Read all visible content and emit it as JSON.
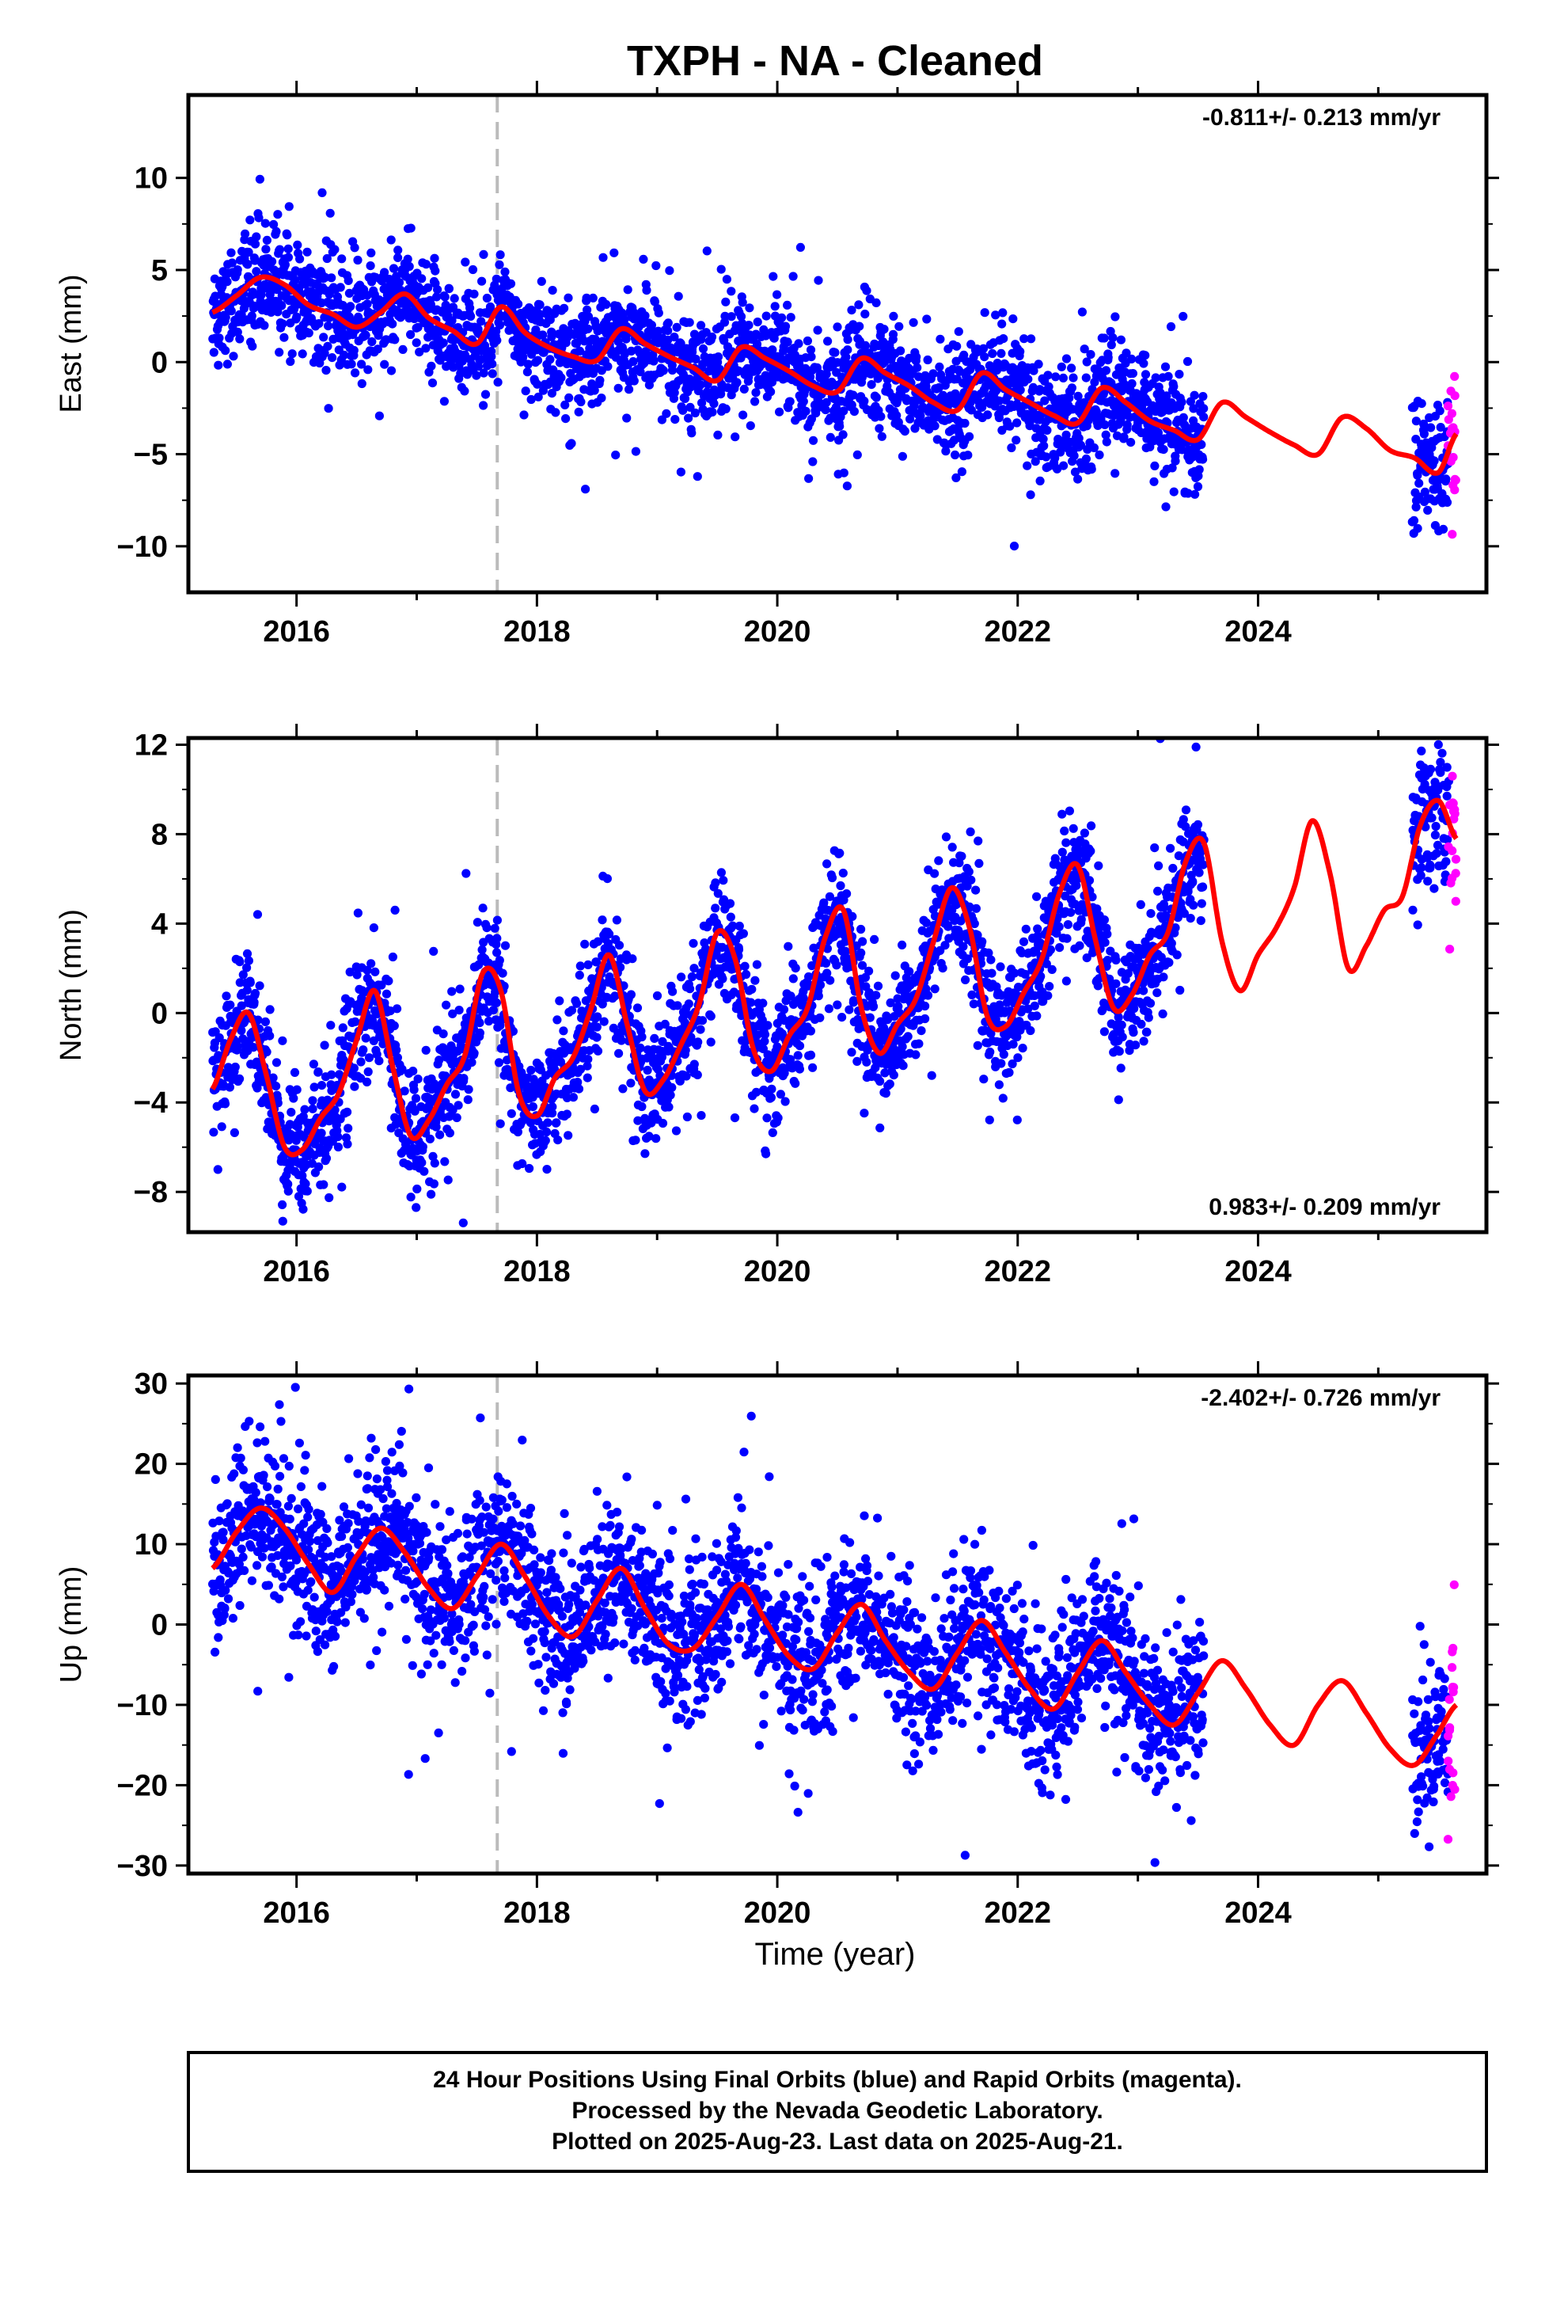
{
  "title": "TXPH  - NA - Cleaned",
  "x_axis_label": "Time (year)",
  "colors": {
    "final_orbits": "#0000ff",
    "rapid_orbits": "#ff00ff",
    "model": "#ff0000",
    "event_line": "#bbbbbb"
  },
  "footer": {
    "line1": "24 Hour Positions Using Final Orbits (blue) and Rapid Orbits (magenta).",
    "line2": "Processed by the Nevada Geodetic Laboratory.",
    "line3": "Plotted on 2025-Aug-23. Last data on 2025-Aug-21."
  },
  "chart_data": [
    {
      "type": "scatter",
      "panel": "east",
      "ylabel": "East (mm)",
      "rate_label": "-0.811+/- 0.213 mm/yr",
      "xlim": [
        2015.1,
        2025.9
      ],
      "ylim": [
        -12.5,
        14.5
      ],
      "xticks": [
        2016,
        2018,
        2020,
        2022,
        2024
      ],
      "yticks": [
        -10,
        -5,
        0,
        5,
        10
      ],
      "event_line_x": 2017.67,
      "final_orbit_span": [
        2015.3,
        2023.55
      ],
      "final_orbit_span_2": [
        2025.28,
        2025.58
      ],
      "rapid_orbit_span": [
        2025.58,
        2025.65
      ],
      "model_curve": {
        "x": [
          2015.3,
          2015.5,
          2015.7,
          2015.9,
          2016.1,
          2016.3,
          2016.5,
          2016.7,
          2016.9,
          2017.1,
          2017.3,
          2017.5,
          2017.7,
          2017.9,
          2018.1,
          2018.3,
          2018.5,
          2018.7,
          2018.9,
          2019.1,
          2019.3,
          2019.5,
          2019.7,
          2019.9,
          2020.1,
          2020.3,
          2020.5,
          2020.7,
          2020.9,
          2021.1,
          2021.3,
          2021.5,
          2021.7,
          2021.9,
          2022.1,
          2022.3,
          2022.5,
          2022.7,
          2022.9,
          2023.1,
          2023.3,
          2023.5,
          2023.7,
          2023.9,
          2024.1,
          2024.3,
          2024.5,
          2024.7,
          2024.9,
          2025.1,
          2025.3,
          2025.5,
          2025.65
        ],
        "y": [
          2.7,
          3.6,
          4.6,
          4.2,
          3.1,
          2.6,
          1.9,
          2.7,
          3.7,
          2.4,
          1.7,
          1.0,
          3.0,
          1.6,
          0.8,
          0.3,
          0.1,
          1.8,
          1.0,
          0.3,
          -0.3,
          -1.0,
          0.8,
          0.2,
          -0.5,
          -1.3,
          -1.6,
          0.2,
          -0.6,
          -1.3,
          -2.2,
          -2.6,
          -0.6,
          -1.5,
          -2.2,
          -2.9,
          -3.3,
          -1.4,
          -2.2,
          -3.2,
          -3.7,
          -4.2,
          -2.2,
          -3.0,
          -3.8,
          -4.5,
          -5.0,
          -3.0,
          -3.6,
          -4.8,
          -5.2,
          -6.0,
          -3.9
        ]
      },
      "model": {
        "intercept": 2.7,
        "rate_mm_yr": -0.811,
        "annual_amp": 1.3,
        "annual_phase_year": 0.62
      },
      "scatter_points": {
        "final_orbits": 2600,
        "rapid_orbits": 18,
        "noise_sd": 1.4
      }
    },
    {
      "type": "scatter",
      "panel": "north",
      "ylabel": "North (mm)",
      "rate_label": "0.983+/- 0.209 mm/yr",
      "xlim": [
        2015.1,
        2025.9
      ],
      "ylim": [
        -9.8,
        12.3
      ],
      "xticks": [
        2016,
        2018,
        2020,
        2022,
        2024
      ],
      "yticks": [
        -8,
        -4,
        0,
        4,
        8,
        12
      ],
      "event_line_x": 2017.67,
      "final_orbit_span": [
        2015.3,
        2023.55
      ],
      "final_orbit_span_2": [
        2025.28,
        2025.58
      ],
      "rapid_orbit_span": [
        2025.58,
        2025.65
      ],
      "model_curve": {
        "x": [
          2015.3,
          2015.45,
          2015.6,
          2015.75,
          2015.9,
          2016.05,
          2016.2,
          2016.35,
          2016.5,
          2016.65,
          2016.8,
          2016.95,
          2017.1,
          2017.25,
          2017.4,
          2017.55,
          2017.7,
          2017.85,
          2018.0,
          2018.15,
          2018.3,
          2018.45,
          2018.6,
          2018.75,
          2018.9,
          2019.05,
          2019.2,
          2019.35,
          2019.5,
          2019.65,
          2019.8,
          2019.95,
          2020.1,
          2020.25,
          2020.4,
          2020.55,
          2020.7,
          2020.85,
          2021.0,
          2021.15,
          2021.3,
          2021.45,
          2021.6,
          2021.75,
          2021.9,
          2022.05,
          2022.2,
          2022.35,
          2022.5,
          2022.65,
          2022.8,
          2022.95,
          2023.1,
          2023.25,
          2023.4,
          2023.55,
          2023.7,
          2023.85,
          2024.0,
          2024.15,
          2024.3,
          2024.45,
          2024.6,
          2024.75,
          2024.9,
          2025.05,
          2025.2,
          2025.35,
          2025.5,
          2025.65
        ],
        "y": [
          -3.4,
          -1.2,
          0.0,
          -2.8,
          -6.0,
          -6.1,
          -4.7,
          -3.6,
          -1.2,
          1.0,
          -2.4,
          -5.5,
          -4.8,
          -3.2,
          -1.9,
          1.8,
          1.0,
          -3.6,
          -4.6,
          -2.9,
          -2.0,
          0.2,
          2.6,
          -0.5,
          -3.5,
          -3.0,
          -1.4,
          0.4,
          3.6,
          2.4,
          -1.6,
          -2.6,
          -1.0,
          0.2,
          3.4,
          4.6,
          0.2,
          -1.8,
          -0.5,
          0.6,
          3.2,
          5.6,
          3.8,
          -0.2,
          -0.6,
          0.9,
          2.4,
          5.4,
          6.6,
          3.2,
          0.2,
          0.8,
          2.6,
          3.6,
          6.8,
          7.6,
          3.2,
          1.0,
          2.6,
          3.8,
          5.6,
          8.6,
          6.2,
          2.0,
          3.0,
          4.6,
          5.2,
          8.4,
          9.5,
          7.8
        ]
      },
      "model": {
        "intercept": -3.4,
        "rate_mm_yr": 0.983,
        "annual_amp": 3.2,
        "annual_phase_year": 0.5
      },
      "scatter_points": {
        "final_orbits": 2600,
        "rapid_orbits": 18,
        "noise_sd": 1.3
      }
    },
    {
      "type": "scatter",
      "panel": "up",
      "ylabel": "Up (mm)",
      "rate_label": "-2.402+/- 0.726 mm/yr",
      "xlim": [
        2015.1,
        2025.9
      ],
      "ylim": [
        -31,
        31
      ],
      "xticks": [
        2016,
        2018,
        2020,
        2022,
        2024
      ],
      "yticks": [
        -30,
        -20,
        -10,
        0,
        10,
        20,
        30
      ],
      "event_line_x": 2017.67,
      "final_orbit_span": [
        2015.3,
        2023.55
      ],
      "final_orbit_span_2": [
        2025.28,
        2025.58
      ],
      "rapid_orbit_span": [
        2025.58,
        2025.65
      ],
      "model_curve": {
        "x": [
          2015.3,
          2015.5,
          2015.7,
          2015.9,
          2016.1,
          2016.3,
          2016.5,
          2016.7,
          2016.9,
          2017.1,
          2017.3,
          2017.5,
          2017.7,
          2017.9,
          2018.1,
          2018.3,
          2018.5,
          2018.7,
          2018.9,
          2019.1,
          2019.3,
          2019.5,
          2019.7,
          2019.9,
          2020.1,
          2020.3,
          2020.5,
          2020.7,
          2020.9,
          2021.1,
          2021.3,
          2021.5,
          2021.7,
          2021.9,
          2022.1,
          2022.3,
          2022.5,
          2022.7,
          2022.9,
          2023.1,
          2023.3,
          2023.5,
          2023.7,
          2023.9,
          2024.1,
          2024.3,
          2024.5,
          2024.7,
          2024.9,
          2025.1,
          2025.3,
          2025.5,
          2025.65
        ],
        "y": [
          7.0,
          11.5,
          14.5,
          12.0,
          7.5,
          4.0,
          8.5,
          12.0,
          9.0,
          4.5,
          2.0,
          6.0,
          10.0,
          6.0,
          1.0,
          -1.5,
          3.0,
          7.0,
          2.0,
          -2.5,
          -3.0,
          1.0,
          5.0,
          0.5,
          -4.0,
          -5.5,
          -1.0,
          2.5,
          -2.0,
          -6.0,
          -8.0,
          -3.5,
          0.5,
          -3.5,
          -8.0,
          -10.5,
          -6.0,
          -2.0,
          -6.0,
          -10.0,
          -12.5,
          -8.5,
          -4.5,
          -8.0,
          -12.5,
          -15.0,
          -10.0,
          -7.0,
          -11.0,
          -15.5,
          -17.5,
          -13.5,
          -10.0
        ]
      },
      "model": {
        "intercept": 7.0,
        "rate_mm_yr": -2.402,
        "annual_amp": 5.0,
        "annual_phase_year": 0.6
      },
      "scatter_points": {
        "final_orbits": 2600,
        "rapid_orbits": 18,
        "noise_sd": 4.5
      }
    }
  ]
}
